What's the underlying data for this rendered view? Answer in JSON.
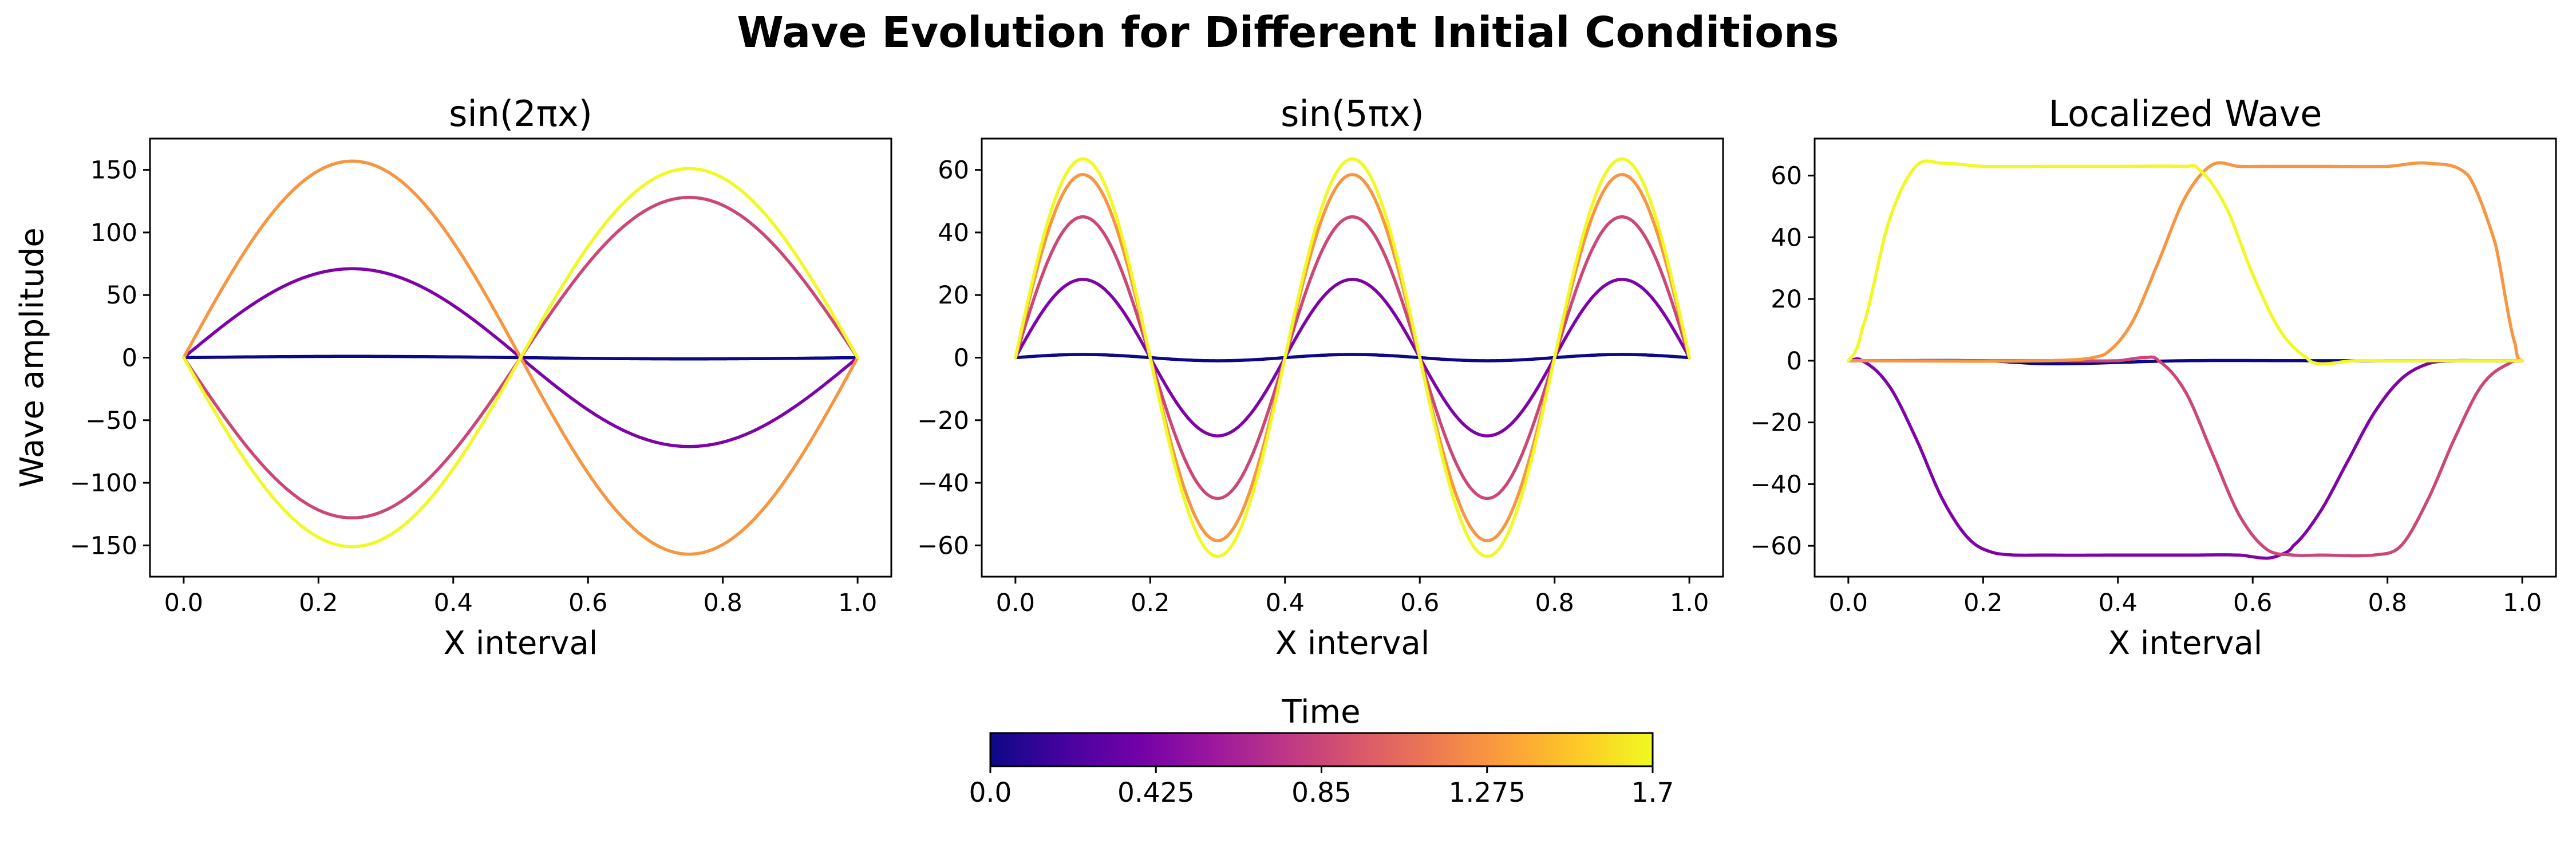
{
  "figure": {
    "title": "Wave Evolution for Different Initial Conditions",
    "colorbar": {
      "label": "Time",
      "colormap": "plasma",
      "colors": [
        "#0d0887",
        "#46039f",
        "#7201a8",
        "#9c179e",
        "#bd3786",
        "#d8576b",
        "#ed7953",
        "#fb9f3a",
        "#fdca26",
        "#f0f921"
      ],
      "range": [
        0.0,
        1.7
      ],
      "ticks": [
        "0.0",
        "0.425",
        "0.85",
        "1.275",
        "1.7"
      ]
    }
  },
  "chart_data": [
    {
      "type": "line",
      "title": "sin(2πx)",
      "xlabel": "X interval",
      "ylabel": "Wave amplitude",
      "xlim": [
        -0.05,
        1.05
      ],
      "ylim": [
        -175,
        175
      ],
      "xticks": [
        "0.0",
        "0.2",
        "0.4",
        "0.6",
        "0.8",
        "1.0"
      ],
      "yticks": [
        "−150",
        "−100",
        "−50",
        "0",
        "50",
        "100",
        "150"
      ],
      "yticks_values": [
        -150,
        -100,
        -50,
        0,
        50,
        100,
        150
      ],
      "curve_shape": "sin(2πx)",
      "series": [
        {
          "time": 0.0,
          "color": "#0d0887",
          "amplitude": 1.0
        },
        {
          "time": 0.425,
          "color": "#7e03a8",
          "amplitude": 71
        },
        {
          "time": 0.85,
          "color": "#cc4778",
          "amplitude": -128
        },
        {
          "time": 1.275,
          "color": "#f89540",
          "amplitude": 157
        },
        {
          "time": 1.7,
          "color": "#f0f921",
          "amplitude": -151
        }
      ]
    },
    {
      "type": "line",
      "title": "sin(5πx)",
      "xlabel": "X interval",
      "ylabel": "",
      "xlim": [
        -0.05,
        1.05
      ],
      "ylim": [
        -70,
        70
      ],
      "xticks": [
        "0.0",
        "0.2",
        "0.4",
        "0.6",
        "0.8",
        "1.0"
      ],
      "yticks": [
        "−60",
        "−40",
        "−20",
        "0",
        "20",
        "40",
        "60"
      ],
      "yticks_values": [
        -60,
        -40,
        -20,
        0,
        20,
        40,
        60
      ],
      "curve_shape": "sin(5πx)",
      "series": [
        {
          "time": 0.0,
          "color": "#0d0887",
          "amplitude": 1.0
        },
        {
          "time": 0.425,
          "color": "#7e03a8",
          "amplitude": 25
        },
        {
          "time": 0.85,
          "color": "#cc4778",
          "amplitude": 45
        },
        {
          "time": 1.275,
          "color": "#f89540",
          "amplitude": 58.5
        },
        {
          "time": 1.7,
          "color": "#f0f921",
          "amplitude": 63.5
        }
      ]
    },
    {
      "type": "line",
      "title": "Localized Wave",
      "xlabel": "X interval",
      "ylabel": "",
      "xlim": [
        -0.05,
        1.05
      ],
      "ylim": [
        -70,
        72
      ],
      "xticks": [
        "0.0",
        "0.2",
        "0.4",
        "0.6",
        "0.8",
        "1.0"
      ],
      "yticks": [
        "−60",
        "−40",
        "−20",
        "0",
        "20",
        "40",
        "60"
      ],
      "yticks_values": [
        -60,
        -40,
        -20,
        0,
        20,
        40,
        60
      ],
      "series": [
        {
          "time": 0.0,
          "color": "#0d0887",
          "x": [
            0.0,
            0.2,
            0.3,
            0.5,
            0.7,
            0.8,
            1.0
          ],
          "y": [
            0,
            0,
            -1,
            0,
            0,
            0,
            0
          ]
        },
        {
          "time": 0.425,
          "color": "#7e03a8",
          "x": [
            0.0,
            0.02,
            0.06,
            0.1,
            0.14,
            0.18,
            0.22,
            0.3,
            0.4,
            0.5,
            0.58,
            0.62,
            0.64,
            0.66,
            0.7,
            0.74,
            0.78,
            0.82,
            0.86,
            0.9,
            0.94,
            1.0
          ],
          "y": [
            0,
            0,
            -8,
            -25,
            -45,
            -58,
            -62.5,
            -63,
            -63,
            -63,
            -63,
            -64,
            -63,
            -60,
            -49,
            -33,
            -17,
            -6,
            -1,
            0,
            0,
            0
          ]
        },
        {
          "time": 0.85,
          "color": "#cc4778",
          "x": [
            0.0,
            0.3,
            0.4,
            0.44,
            0.46,
            0.5,
            0.54,
            0.58,
            0.62,
            0.66,
            0.7,
            0.78,
            0.82,
            0.86,
            0.9,
            0.94,
            0.98,
            1.0
          ],
          "y": [
            0,
            0,
            0,
            1,
            0,
            -10,
            -30,
            -50,
            -61,
            -63,
            -63,
            -63,
            -60,
            -45,
            -25,
            -8,
            -1,
            0
          ]
        },
        {
          "time": 1.275,
          "color": "#f89540",
          "x": [
            0.0,
            0.3,
            0.38,
            0.42,
            0.46,
            0.5,
            0.54,
            0.58,
            0.62,
            0.7,
            0.8,
            0.86,
            0.92,
            0.96,
            0.99,
            1.0
          ],
          "y": [
            0,
            0,
            2,
            12,
            32,
            53,
            63.5,
            63,
            63,
            63,
            63,
            64,
            60,
            38,
            5,
            0
          ]
        },
        {
          "time": 1.7,
          "color": "#f0f921",
          "x": [
            0.0,
            0.02,
            0.06,
            0.1,
            0.14,
            0.2,
            0.3,
            0.4,
            0.5,
            0.52,
            0.56,
            0.6,
            0.64,
            0.68,
            0.7,
            0.75,
            0.8,
            0.9,
            1.0
          ],
          "y": [
            0,
            10,
            45,
            63,
            64,
            63,
            63,
            63,
            63,
            62,
            50,
            28,
            10,
            1,
            -1,
            0,
            0,
            0,
            0
          ]
        }
      ]
    }
  ]
}
